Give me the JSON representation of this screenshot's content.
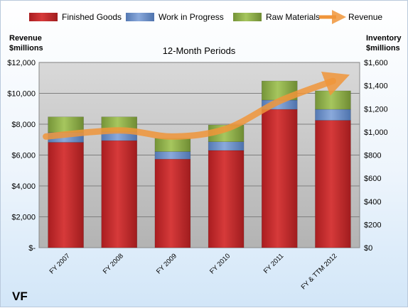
{
  "chart_data": {
    "type": "bar",
    "stacked": true,
    "title": "12-Month Periods",
    "brand": "VF",
    "categories": [
      "FY 2007",
      "FY 2008",
      "FY 2009",
      "FY 2010",
      "FY 2011",
      "FY & TTM 2012"
    ],
    "left_axis": {
      "title_line1": "Revenue",
      "title_line2": "$millions",
      "ylim": [
        0,
        12000
      ],
      "ticks": [
        0,
        2000,
        4000,
        6000,
        8000,
        10000,
        12000
      ],
      "tick_labels": [
        "$-",
        "$2,000",
        "$4,000",
        "$6,000",
        "$8,000",
        "$10,000",
        "$12,000"
      ]
    },
    "right_axis": {
      "title_line1": "Inventory",
      "title_line2": "$millions",
      "ylim": [
        0,
        1600
      ],
      "ticks": [
        0,
        200,
        400,
        600,
        800,
        1000,
        1200,
        1400,
        1600
      ],
      "tick_labels": [
        "$0",
        "$200",
        "$400",
        "$600",
        "$800",
        "$1,000",
        "$1,200",
        "$1,400",
        "$1,600"
      ]
    },
    "series": [
      {
        "name": "Finished Goods",
        "axis": "right",
        "values": [
          910,
          925,
          765,
          840,
          1195,
          1100
        ],
        "color": "#c0282a"
      },
      {
        "name": "Work in Progress",
        "axis": "right",
        "values": [
          85,
          75,
          65,
          75,
          80,
          95
        ],
        "color": "#6f95cc"
      },
      {
        "name": "Raw Materials",
        "axis": "right",
        "values": [
          135,
          130,
          115,
          145,
          165,
          160
        ],
        "color": "#8fb04a"
      }
    ],
    "line_series": {
      "name": "Revenue",
      "axis": "left",
      "values": [
        7200,
        7600,
        7200,
        7700,
        9500,
        10800
      ],
      "color": "#f0953a"
    },
    "legend_placement": "top",
    "grid": true,
    "plot_background": "#c6c6c6"
  }
}
